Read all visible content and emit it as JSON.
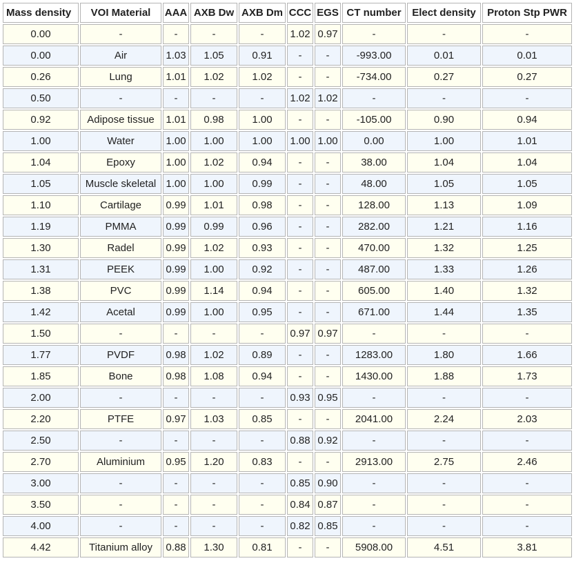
{
  "table": {
    "headers": [
      "Mass density",
      "VOI Material",
      "AAA",
      "AXB Dw",
      "AXB Dm",
      "CCC",
      "EGS",
      "CT number",
      "Elect density",
      "Proton Stp PWR"
    ],
    "rows": [
      [
        "0.00",
        "-",
        "-",
        "-",
        "-",
        "1.02",
        "0.97",
        "-",
        "-",
        "-"
      ],
      [
        "0.00",
        "Air",
        "1.03",
        "1.05",
        "0.91",
        "-",
        "-",
        "-993.00",
        "0.01",
        "0.01"
      ],
      [
        "0.26",
        "Lung",
        "1.01",
        "1.02",
        "1.02",
        "-",
        "-",
        "-734.00",
        "0.27",
        "0.27"
      ],
      [
        "0.50",
        "-",
        "-",
        "-",
        "-",
        "1.02",
        "1.02",
        "-",
        "-",
        "-"
      ],
      [
        "0.92",
        "Adipose tissue",
        "1.01",
        "0.98",
        "1.00",
        "-",
        "-",
        "-105.00",
        "0.90",
        "0.94"
      ],
      [
        "1.00",
        "Water",
        "1.00",
        "1.00",
        "1.00",
        "1.00",
        "1.00",
        "0.00",
        "1.00",
        "1.01"
      ],
      [
        "1.04",
        "Epoxy",
        "1.00",
        "1.02",
        "0.94",
        "-",
        "-",
        "38.00",
        "1.04",
        "1.04"
      ],
      [
        "1.05",
        "Muscle skeletal",
        "1.00",
        "1.00",
        "0.99",
        "-",
        "-",
        "48.00",
        "1.05",
        "1.05"
      ],
      [
        "1.10",
        "Cartilage",
        "0.99",
        "1.01",
        "0.98",
        "-",
        "-",
        "128.00",
        "1.13",
        "1.09"
      ],
      [
        "1.19",
        "PMMA",
        "0.99",
        "0.99",
        "0.96",
        "-",
        "-",
        "282.00",
        "1.21",
        "1.16"
      ],
      [
        "1.30",
        "Radel",
        "0.99",
        "1.02",
        "0.93",
        "-",
        "-",
        "470.00",
        "1.32",
        "1.25"
      ],
      [
        "1.31",
        "PEEK",
        "0.99",
        "1.00",
        "0.92",
        "-",
        "-",
        "487.00",
        "1.33",
        "1.26"
      ],
      [
        "1.38",
        "PVC",
        "0.99",
        "1.14",
        "0.94",
        "-",
        "-",
        "605.00",
        "1.40",
        "1.32"
      ],
      [
        "1.42",
        "Acetal",
        "0.99",
        "1.00",
        "0.95",
        "-",
        "-",
        "671.00",
        "1.44",
        "1.35"
      ],
      [
        "1.50",
        "-",
        "-",
        "-",
        "-",
        "0.97",
        "0.97",
        "-",
        "-",
        "-"
      ],
      [
        "1.77",
        "PVDF",
        "0.98",
        "1.02",
        "0.89",
        "-",
        "-",
        "1283.00",
        "1.80",
        "1.66"
      ],
      [
        "1.85",
        "Bone",
        "0.98",
        "1.08",
        "0.94",
        "-",
        "-",
        "1430.00",
        "1.88",
        "1.73"
      ],
      [
        "2.00",
        "-",
        "-",
        "-",
        "-",
        "0.93",
        "0.95",
        "-",
        "-",
        "-"
      ],
      [
        "2.20",
        "PTFE",
        "0.97",
        "1.03",
        "0.85",
        "-",
        "-",
        "2041.00",
        "2.24",
        "2.03"
      ],
      [
        "2.50",
        "-",
        "-",
        "-",
        "-",
        "0.88",
        "0.92",
        "-",
        "-",
        "-"
      ],
      [
        "2.70",
        "Aluminium",
        "0.95",
        "1.20",
        "0.83",
        "-",
        "-",
        "2913.00",
        "2.75",
        "2.46"
      ],
      [
        "3.00",
        "-",
        "-",
        "-",
        "-",
        "0.85",
        "0.90",
        "-",
        "-",
        "-"
      ],
      [
        "3.50",
        "-",
        "-",
        "-",
        "-",
        "0.84",
        "0.87",
        "-",
        "-",
        "-"
      ],
      [
        "4.00",
        "-",
        "-",
        "-",
        "-",
        "0.82",
        "0.85",
        "-",
        "-",
        "-"
      ],
      [
        "4.42",
        "Titanium alloy",
        "0.88",
        "1.30",
        "0.81",
        "-",
        "-",
        "5908.00",
        "4.51",
        "3.81"
      ]
    ],
    "colors": {
      "header_bg": "#ffffff",
      "row_odd_bg": "#fffff0",
      "row_even_bg": "#eff5fd",
      "border": "#b4b4b4"
    }
  }
}
